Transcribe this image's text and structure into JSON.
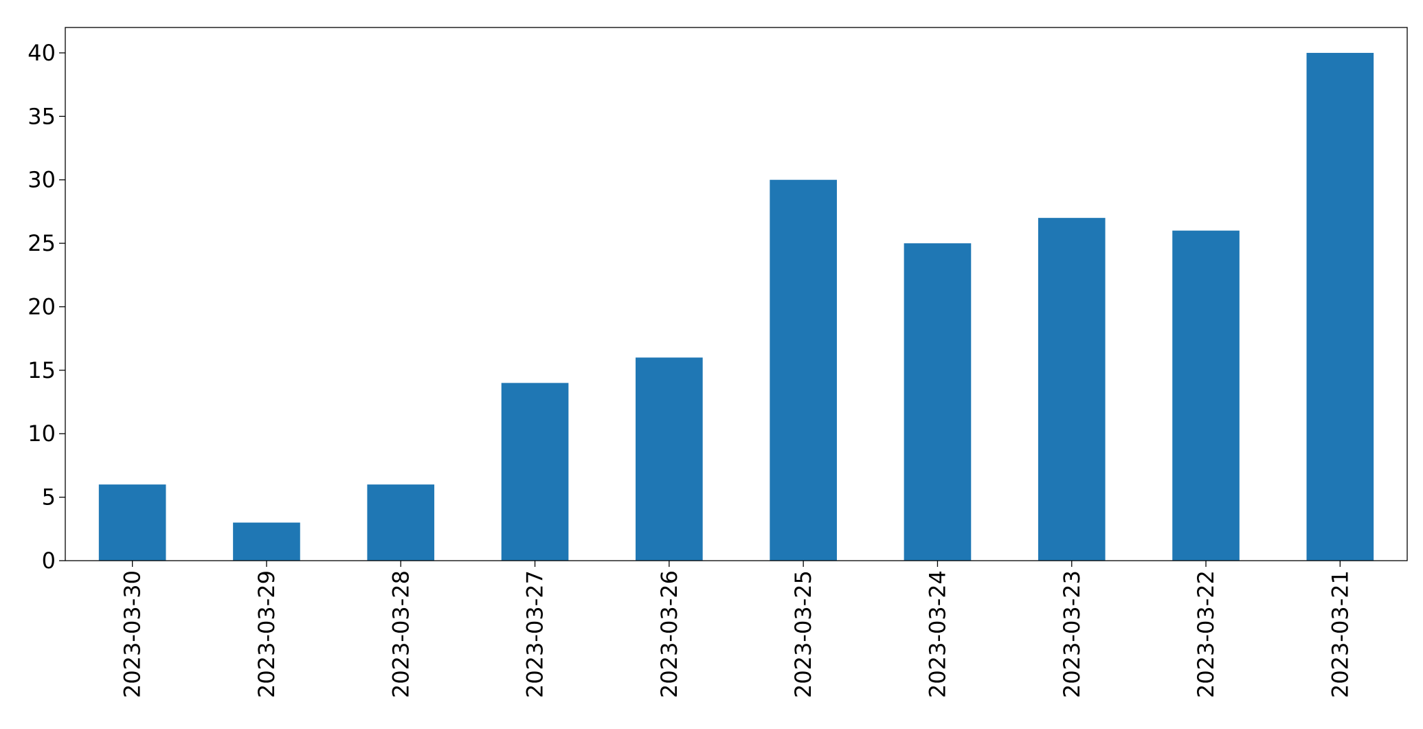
{
  "chart_data": {
    "type": "bar",
    "categories": [
      "2023-03-30",
      "2023-03-29",
      "2023-03-28",
      "2023-03-27",
      "2023-03-26",
      "2023-03-25",
      "2023-03-24",
      "2023-03-23",
      "2023-03-22",
      "2023-03-21"
    ],
    "values": [
      6,
      3,
      6,
      14,
      16,
      30,
      25,
      27,
      26,
      40
    ],
    "color": "#1f77b4",
    "ylim": [
      0,
      42
    ],
    "yticks": [
      0,
      5,
      10,
      15,
      20,
      25,
      30,
      35,
      40
    ],
    "grid": false
  }
}
